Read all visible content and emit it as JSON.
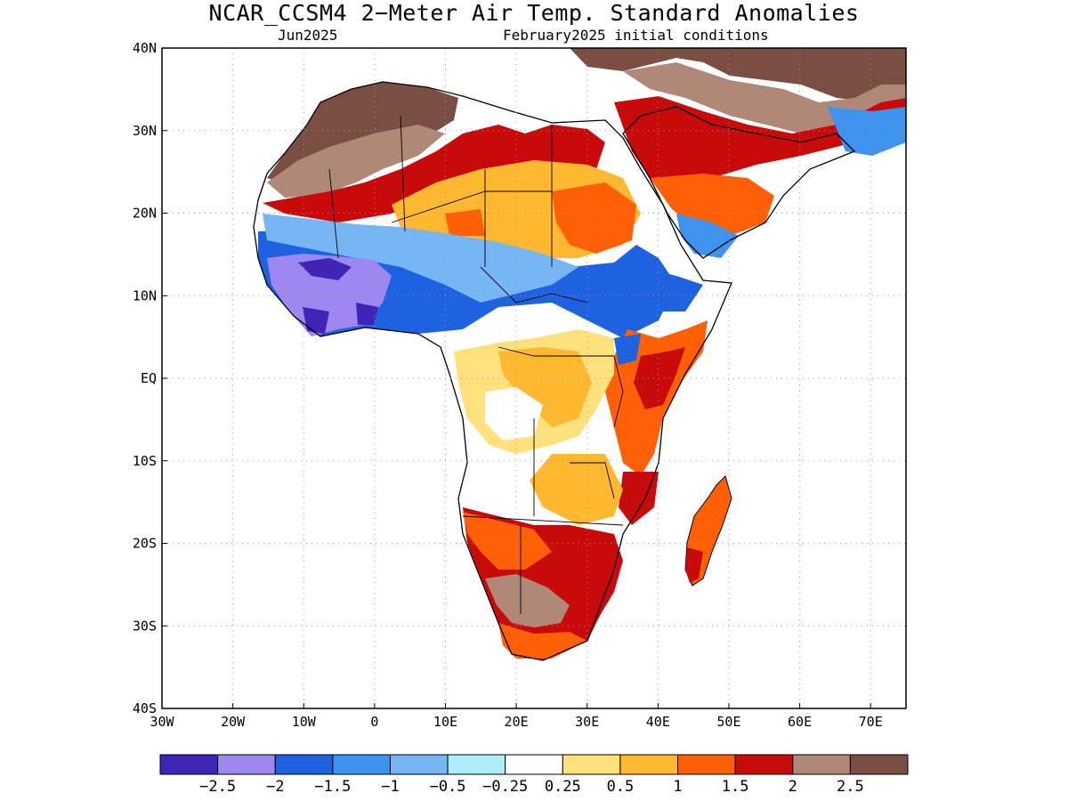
{
  "title": "NCAR_CCSM4 2−Meter Air Temp. Standard Anomalies",
  "subtitle_left": "Jun2025",
  "subtitle_right": "February2025 initial conditions",
  "map": {
    "lon_range": [
      -30,
      75
    ],
    "lat_range": [
      -40,
      40
    ],
    "lon_ticks": [
      {
        "v": -30,
        "label": "30W"
      },
      {
        "v": -20,
        "label": "20W"
      },
      {
        "v": -10,
        "label": "10W"
      },
      {
        "v": 0,
        "label": "0"
      },
      {
        "v": 10,
        "label": "10E"
      },
      {
        "v": 20,
        "label": "20E"
      },
      {
        "v": 30,
        "label": "30E"
      },
      {
        "v": 40,
        "label": "40E"
      },
      {
        "v": 50,
        "label": "50E"
      },
      {
        "v": 60,
        "label": "60E"
      },
      {
        "v": 70,
        "label": "70E"
      }
    ],
    "lat_ticks": [
      {
        "v": 40,
        "label": "40N"
      },
      {
        "v": 30,
        "label": "30N"
      },
      {
        "v": 20,
        "label": "20N"
      },
      {
        "v": 10,
        "label": "10N"
      },
      {
        "v": 0,
        "label": "EQ"
      },
      {
        "v": -10,
        "label": "10S"
      },
      {
        "v": -20,
        "label": "20S"
      },
      {
        "v": -30,
        "label": "30S"
      },
      {
        "v": -40,
        "label": "40S"
      }
    ],
    "gridlines": "dotted"
  },
  "colorbar": {
    "colors": [
      "#3f24b8",
      "#9e88f0",
      "#1e62e0",
      "#3e93ee",
      "#76b6f4",
      "#aeeefa",
      "#ffffff",
      "#ffe07a",
      "#ffb830",
      "#ff5f05",
      "#c80a0a",
      "#b08878",
      "#7a4e43"
    ],
    "labels": [
      "−2.5",
      "−2",
      "−1.5",
      "−1",
      "−0.5",
      "−0.25",
      "0.25",
      "0.5",
      "1",
      "1.5",
      "2",
      "2.5"
    ]
  },
  "regions": [
    {
      "name": "sahara-west",
      "color": "#7a4e43"
    },
    {
      "name": "sahara-north",
      "color": "#b08878"
    },
    {
      "name": "sahara-central",
      "color": "#ffb830"
    },
    {
      "name": "sahel",
      "color": "#1e62e0"
    },
    {
      "name": "west-africa-coast",
      "color": "#9e88f0"
    },
    {
      "name": "arabia",
      "color": "#c80a0a"
    },
    {
      "name": "middle-east",
      "color": "#7a4e43"
    },
    {
      "name": "east-africa",
      "color": "#ff5f05"
    },
    {
      "name": "central-africa",
      "color": "#ffe07a"
    },
    {
      "name": "southern-africa",
      "color": "#c80a0a"
    },
    {
      "name": "south-africa-interior",
      "color": "#b08878"
    },
    {
      "name": "madagascar",
      "color": "#ff5f05"
    }
  ]
}
